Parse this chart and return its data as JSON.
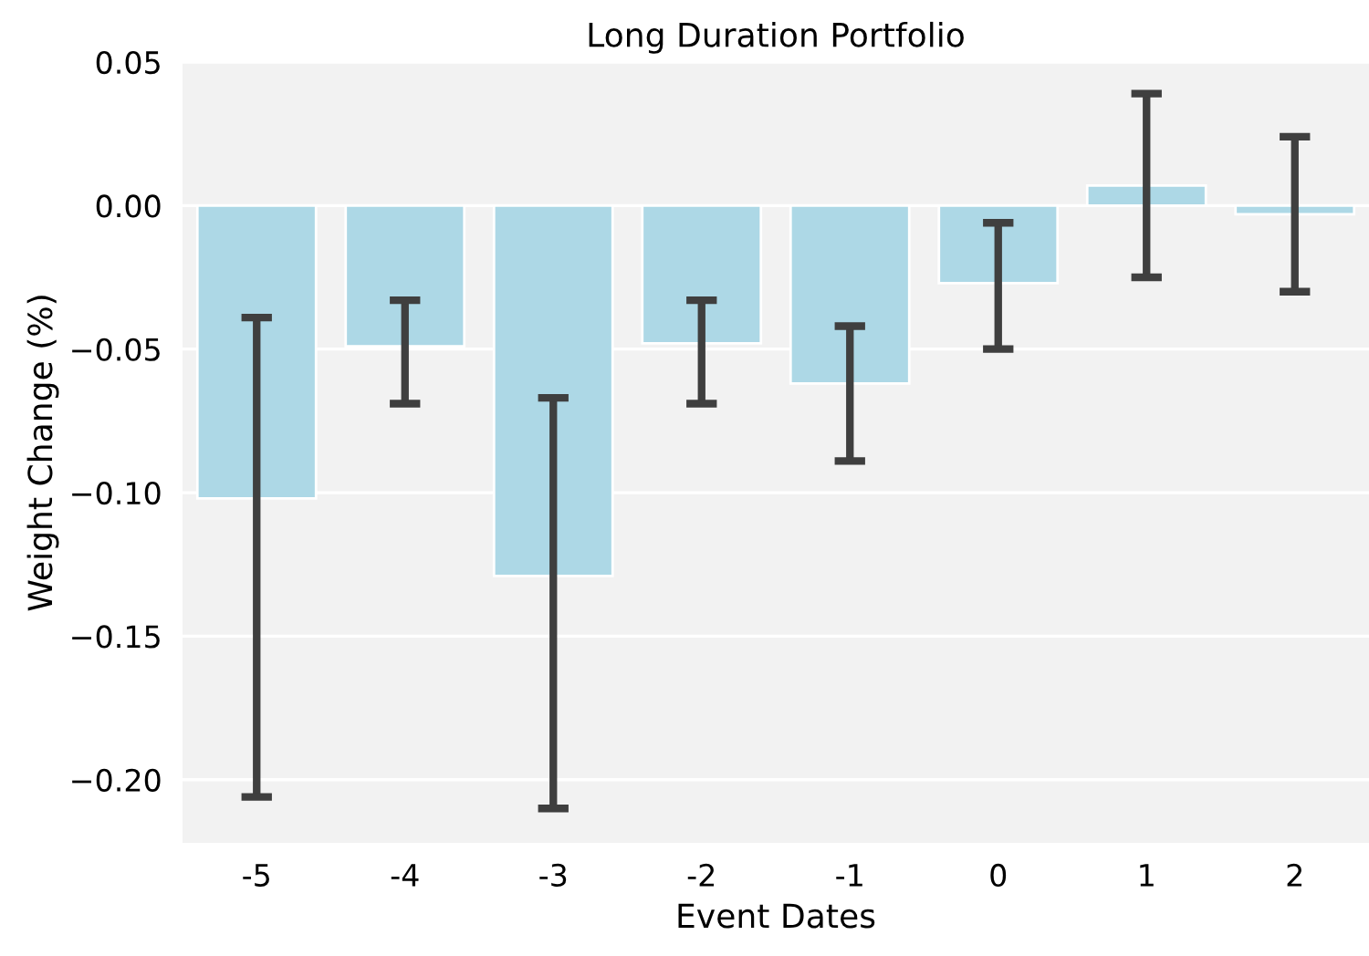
{
  "chart_data": {
    "type": "bar",
    "title": "Long Duration Portfolio",
    "xlabel": "Event Dates",
    "ylabel": "Weight Change (%)",
    "categories": [
      "-5",
      "-4",
      "-3",
      "-2",
      "-1",
      "0",
      "1",
      "2"
    ],
    "values": [
      -0.102,
      -0.049,
      -0.129,
      -0.048,
      -0.062,
      -0.027,
      0.007,
      -0.003
    ],
    "errors": [
      [
        -0.206,
        -0.039
      ],
      [
        -0.069,
        -0.033
      ],
      [
        -0.21,
        -0.067
      ],
      [
        -0.069,
        -0.033
      ],
      [
        -0.089,
        -0.042
      ],
      [
        -0.05,
        -0.006
      ],
      [
        -0.025,
        0.039
      ],
      [
        -0.03,
        0.024
      ]
    ],
    "color": "#add8e6",
    "ylim": [
      -0.222,
      0.05
    ],
    "yticks": [
      {
        "value": -0.2,
        "label": "−0.20"
      },
      {
        "value": -0.15,
        "label": "−0.15"
      },
      {
        "value": -0.1,
        "label": "−0.10"
      },
      {
        "value": -0.05,
        "label": "−0.05"
      },
      {
        "value": 0,
        "label": "0.00"
      },
      {
        "value": 0.05,
        "label": "0.05"
      }
    ],
    "grid": "y"
  }
}
